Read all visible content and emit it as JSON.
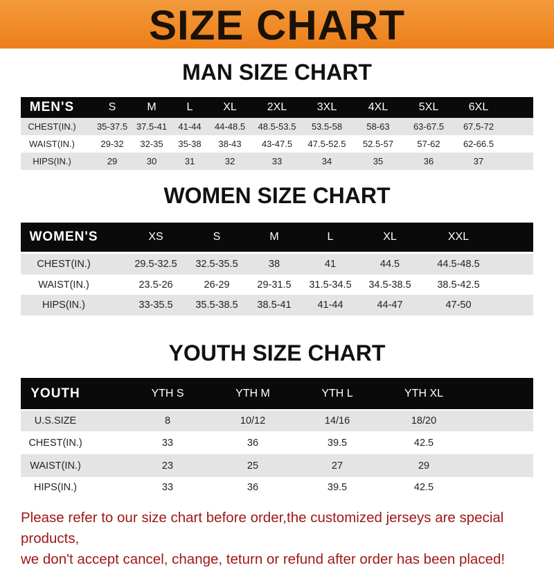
{
  "banner_title": "SIZE CHART",
  "tables": [
    {
      "title": "MAN SIZE CHART",
      "header": [
        "MEN'S",
        "S",
        "M",
        "L",
        "XL",
        "2XL",
        "3XL",
        "4XL",
        "5XL",
        "6XL"
      ],
      "rows": [
        [
          "CHEST(IN.)",
          "35-37.5",
          "37.5-41",
          "41-44",
          "44-48.5",
          "48.5-53.5",
          "53.5-58",
          "58-63",
          "63-67.5",
          "67.5-72"
        ],
        [
          "WAIST(IN.)",
          "29-32",
          "32-35",
          "35-38",
          "38-43",
          "43-47.5",
          "47.5-52.5",
          "52.5-57",
          "57-62",
          "62-66.5"
        ],
        [
          "HIPS(IN.)",
          "29",
          "30",
          "31",
          "32",
          "33",
          "34",
          "35",
          "36",
          "37"
        ]
      ]
    },
    {
      "title": "WOMEN SIZE CHART",
      "header": [
        "WOMEN'S",
        "XS",
        "S",
        "M",
        "L",
        "XL",
        "XXL"
      ],
      "rows": [
        [
          "CHEST(IN.)",
          "29.5-32.5",
          "32.5-35.5",
          "38",
          "41",
          "44.5",
          "44.5-48.5"
        ],
        [
          "WAIST(IN.)",
          "23.5-26",
          "26-29",
          "29-31.5",
          "31.5-34.5",
          "34.5-38.5",
          "38.5-42.5"
        ],
        [
          "HIPS(IN.)",
          "33-35.5",
          "35.5-38.5",
          "38.5-41",
          "41-44",
          "44-47",
          "47-50"
        ]
      ]
    },
    {
      "title": "YOUTH SIZE CHART",
      "header": [
        "YOUTH",
        "YTH S",
        "YTH M",
        "YTH L",
        "YTH XL"
      ],
      "rows": [
        [
          "U.S.SIZE",
          "8",
          "10/12",
          "14/16",
          "18/20"
        ],
        [
          "CHEST(IN.)",
          "33",
          "36",
          "39.5",
          "42.5"
        ],
        [
          "WAIST(IN.)",
          "23",
          "25",
          "27",
          "29"
        ],
        [
          "HIPS(IN.)",
          "33",
          "36",
          "39.5",
          "42.5"
        ]
      ]
    }
  ],
  "notice_lines": [
    "Please refer to our size chart before order,the customized jerseys are special products,",
    "we don't accept cancel, change, teturn or refund after order has been placed!"
  ],
  "colors": {
    "banner": "#ee8420",
    "header_row": "#0a0a0a",
    "stripe": "#e4e4e4",
    "notice": "#a01818"
  }
}
